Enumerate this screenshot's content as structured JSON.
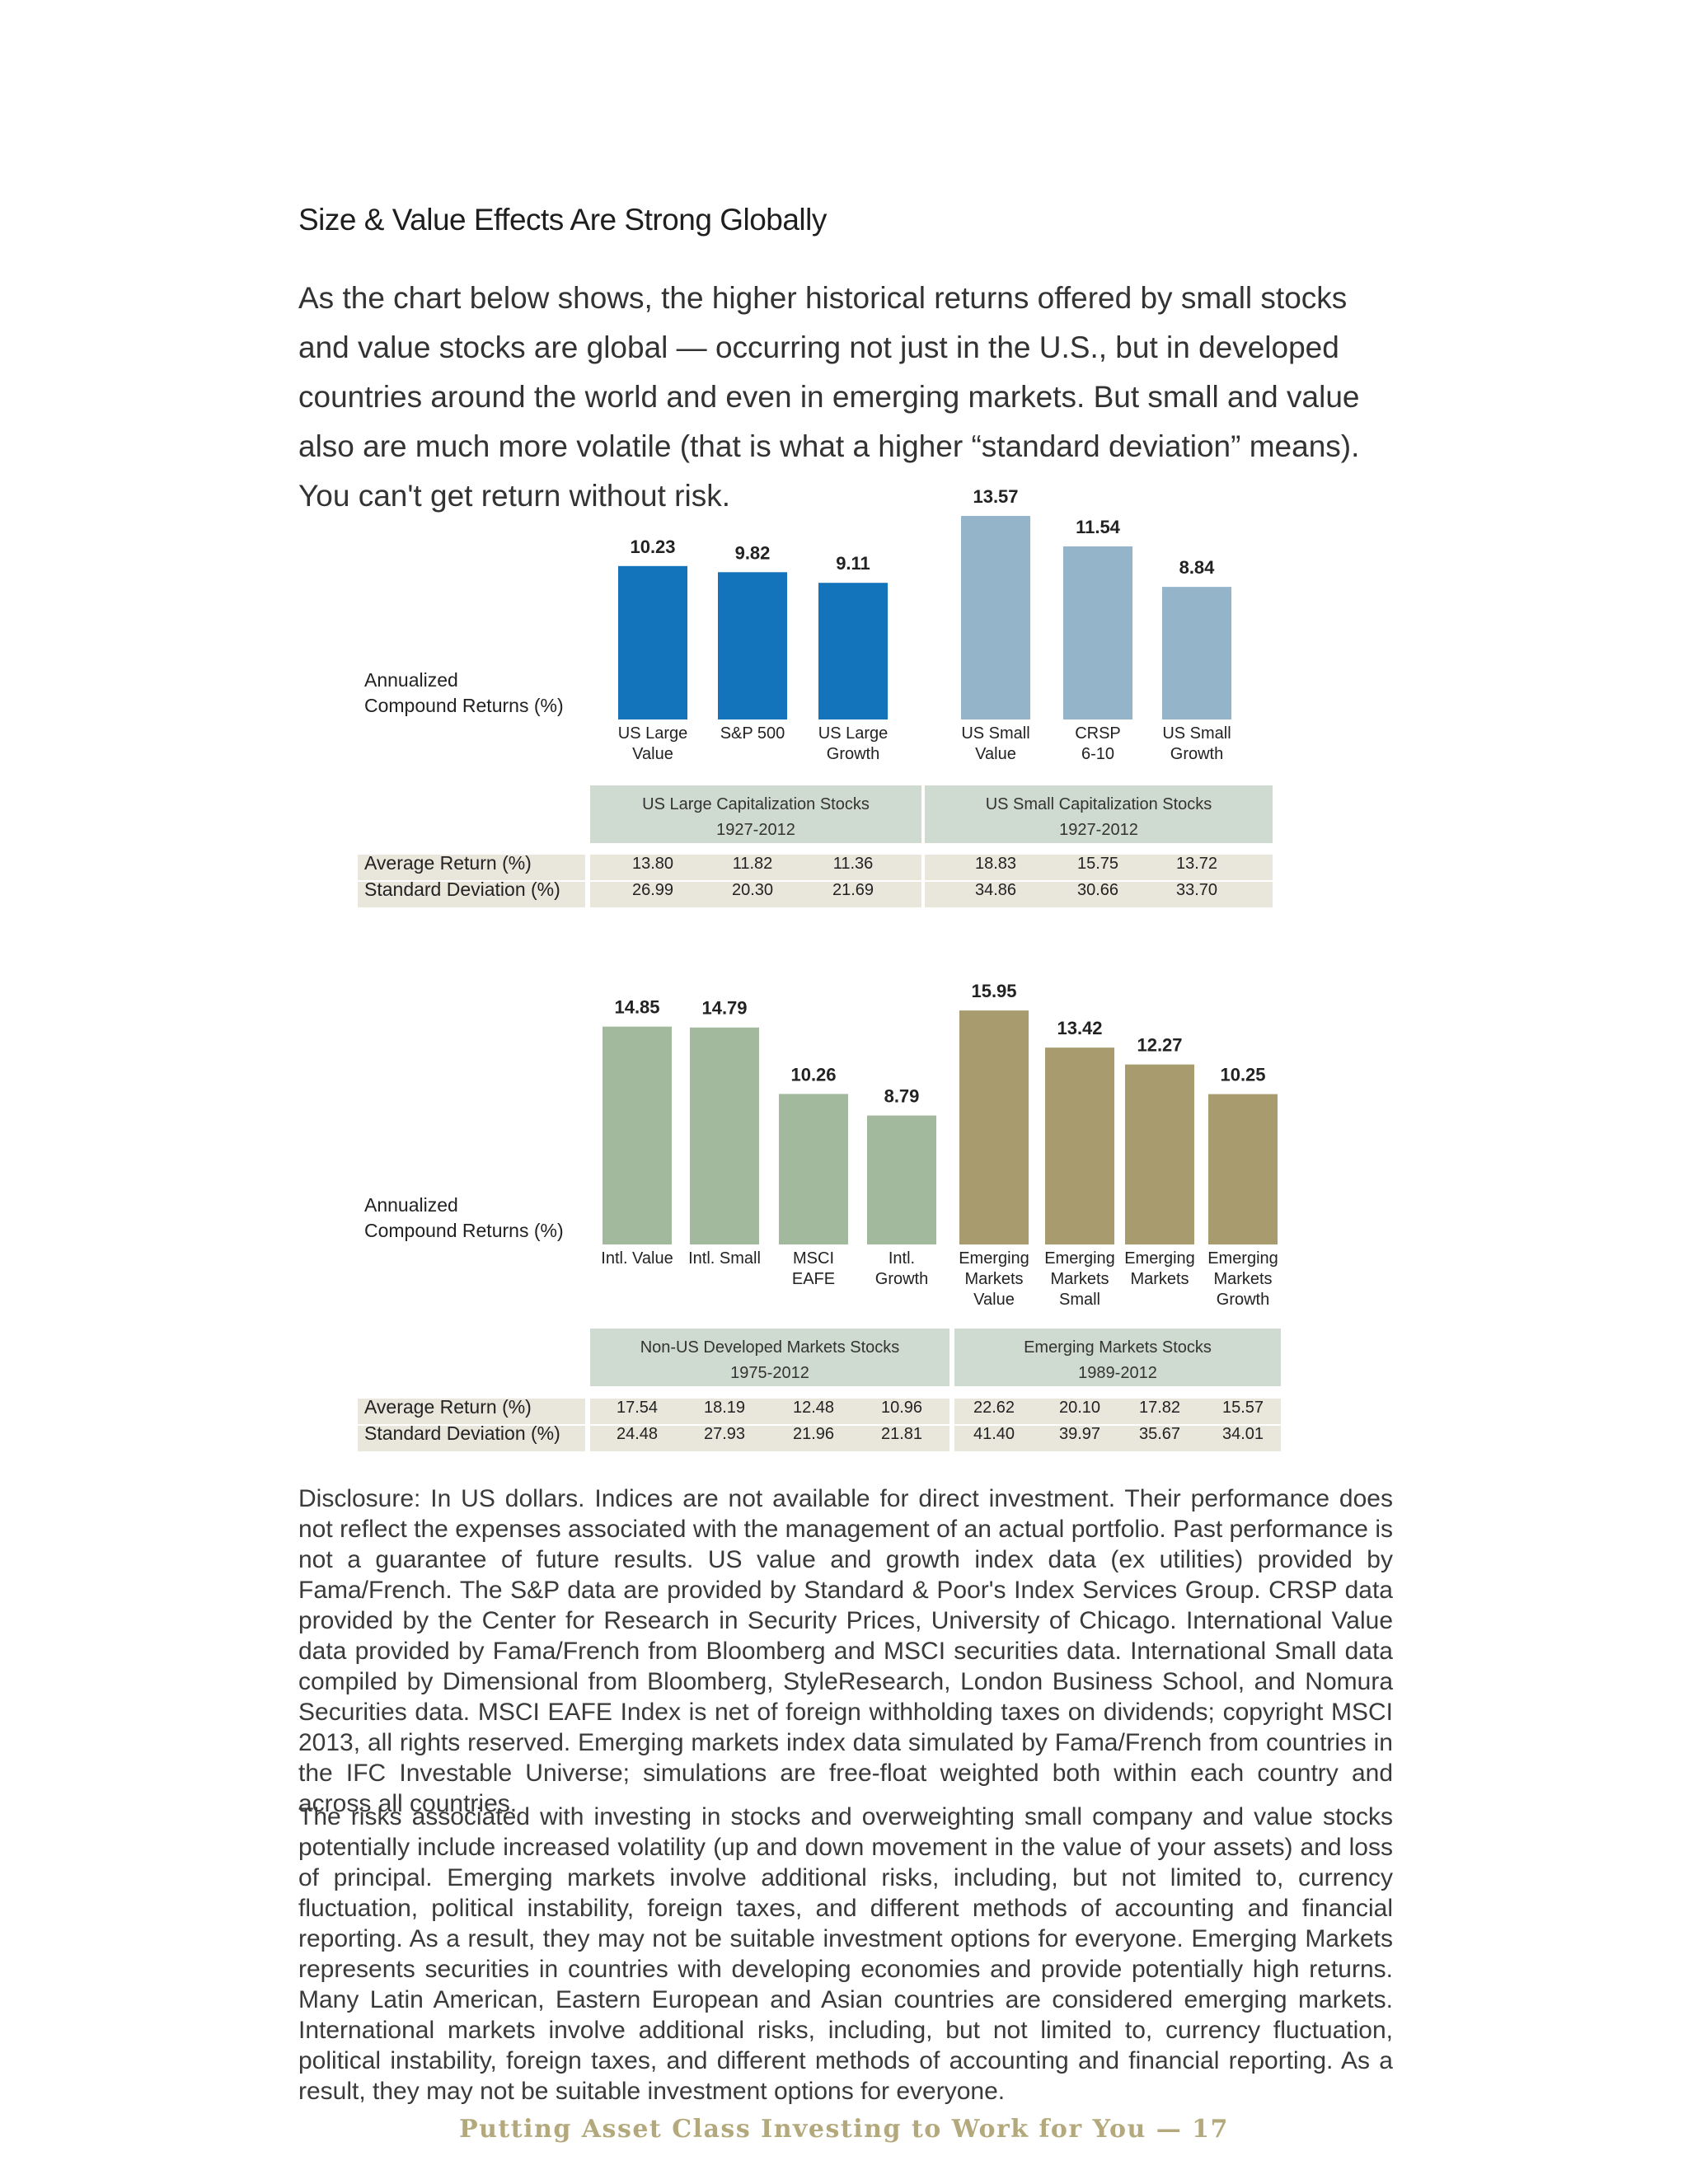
{
  "page": {
    "heading": "Size & Value Effects Are Strong Globally",
    "intro": "As the chart below shows, the higher historical returns offered by small stocks and value stocks are global — occurring not just in the U.S., but in developed countries around the world and even in emerging markets. But small and value also are much more volatile (that is what a higher “standard deviation” means). You can't get return without risk.",
    "disclosure": "Disclosure: In US dollars. Indices are not available for direct investment. Their performance does not reflect the expenses associated with the management of an actual portfolio. Past performance is not a guarantee of future results. US value and growth index data (ex utilities) provided by Fama/French. The S&P data are provided by Standard & Poor's Index Services Group. CRSP data provided by the Center for Research in Security Prices, University of Chicago. International Value data provided by Fama/French from Bloomberg and MSCI securities data. International Small data compiled by Dimensional from Bloomberg, StyleResearch, London Business School, and Nomura Securities data. MSCI EAFE Index is net of foreign withholding taxes on dividends; copyright MSCI 2013, all rights reserved. Emerging markets index data simulated by Fama/French from countries in the IFC Investable Universe; simulations are free-float weighted both within each country and across all countries.",
    "risks": "The risks associated with investing in stocks and overweighting small company and value stocks potentially include increased volatility (up and down movement in the value of your assets) and loss of principal. Emerging markets involve additional risks, including, but not limited to, currency fluctuation, political instability, foreign taxes, and different methods of accounting and financial reporting. As a result, they may not be suitable investment options for everyone. Emerging Markets represents securities in countries with developing economies and provide potentially high returns. Many Latin American, Eastern European and Asian countries are considered emerging markets. International markets involve additional risks, including, but not limited to, currency fluctuation, political instability, foreign taxes, and different methods of accounting and financial reporting. As a result, they may not be suitable investment options for everyone.",
    "footer": "Putting Asset Class Investing to Work for You — 17"
  },
  "chart_data": [
    {
      "type": "bar",
      "ylabel": [
        "Annualized",
        "Compound Returns (%)"
      ],
      "row_labels": [
        "Average Return (%)",
        "Standard Deviation (%)"
      ],
      "categories": [
        [
          "US Large",
          "Value"
        ],
        [
          "S&P 500"
        ],
        [
          "US Large",
          "Growth"
        ],
        [
          "US Small",
          "Value"
        ],
        [
          "CRSP",
          "6-10"
        ],
        [
          "US Small",
          "Growth"
        ]
      ],
      "values": [
        10.23,
        9.82,
        9.11,
        13.57,
        11.54,
        8.84
      ],
      "colors": [
        "#1373bb",
        "#1373bb",
        "#1373bb",
        "#94b5c9",
        "#94b5c9",
        "#94b5c9"
      ],
      "groups": [
        {
          "name": "US Large Capitalization Stocks",
          "period": "1927-2012"
        },
        {
          "name": "US Small Capitalization Stocks",
          "period": "1927-2012"
        }
      ],
      "average_return": [
        13.8,
        11.82,
        11.36,
        18.83,
        15.75,
        13.72
      ],
      "standard_deviation": [
        26.99,
        20.3,
        21.69,
        34.86,
        30.66,
        33.7
      ]
    },
    {
      "type": "bar",
      "ylabel": [
        "Annualized",
        "Compound Returns (%)"
      ],
      "row_labels": [
        "Average Return (%)",
        "Standard Deviation (%)"
      ],
      "categories": [
        [
          "Intl. Value"
        ],
        [
          "Intl. Small"
        ],
        [
          "MSCI",
          "EAFE"
        ],
        [
          "Intl.",
          "Growth"
        ],
        [
          "Emerging",
          "Markets",
          "Value"
        ],
        [
          "Emerging",
          "Markets",
          "Small"
        ],
        [
          "Emerging",
          "Markets"
        ],
        [
          "Emerging",
          "Markets",
          "Growth"
        ]
      ],
      "values": [
        14.85,
        14.79,
        10.26,
        8.79,
        15.95,
        13.42,
        12.27,
        10.25
      ],
      "colors": [
        "#a2b99d",
        "#a2b99d",
        "#a2b99d",
        "#a2b99d",
        "#a89c6e",
        "#a89c6e",
        "#a89c6e",
        "#a89c6e"
      ],
      "groups": [
        {
          "name": "Non-US Developed Markets Stocks",
          "period": "1975-2012"
        },
        {
          "name": "Emerging Markets Stocks",
          "period": "1989-2012"
        }
      ],
      "average_return": [
        17.54,
        18.19,
        12.48,
        10.96,
        22.62,
        20.1,
        17.82,
        15.57
      ],
      "standard_deviation": [
        24.48,
        27.93,
        21.96,
        21.81,
        41.4,
        39.97,
        35.67,
        34.01
      ]
    }
  ]
}
